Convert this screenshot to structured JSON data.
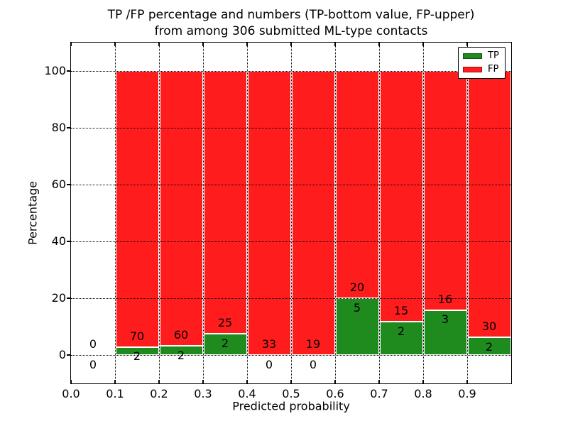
{
  "chart_data": {
    "type": "bar",
    "stacked": true,
    "title_line1": "TP /FP percentage and numbers (TP-bottom value, FP-upper)",
    "title_line2": "from among 306 submitted ML-type contacts",
    "xlabel": "Predicted probability",
    "ylabel": "Percentage",
    "xlim": [
      0.0,
      1.0
    ],
    "ylim": [
      -10,
      110
    ],
    "grid": "dotted",
    "legend_position": "upper right",
    "xticks": [
      {
        "value": 0.0,
        "label": "0.0"
      },
      {
        "value": 0.1,
        "label": "0.1"
      },
      {
        "value": 0.2,
        "label": "0.2"
      },
      {
        "value": 0.3,
        "label": "0.3"
      },
      {
        "value": 0.4,
        "label": "0.4"
      },
      {
        "value": 0.5,
        "label": "0.5"
      },
      {
        "value": 0.6,
        "label": "0.6"
      },
      {
        "value": 0.7,
        "label": "0.7"
      },
      {
        "value": 0.8,
        "label": "0.8"
      },
      {
        "value": 0.9,
        "label": "0.9"
      }
    ],
    "yticks": [
      {
        "value": 0,
        "label": "0"
      },
      {
        "value": 20,
        "label": "20"
      },
      {
        "value": 40,
        "label": "40"
      },
      {
        "value": 60,
        "label": "60"
      },
      {
        "value": 80,
        "label": "80"
      },
      {
        "value": 100,
        "label": "100"
      }
    ],
    "series": [
      {
        "name": "TP",
        "color": "#1f8b1f",
        "edge": "#145214"
      },
      {
        "name": "FP",
        "color": "#ff1c1c",
        "edge": "#a01010"
      }
    ],
    "bins": [
      {
        "x0": 0.0,
        "x1": 0.1,
        "tp": 0,
        "fp": 0
      },
      {
        "x0": 0.1,
        "x1": 0.2,
        "tp": 2,
        "fp": 70
      },
      {
        "x0": 0.2,
        "x1": 0.3,
        "tp": 2,
        "fp": 60
      },
      {
        "x0": 0.3,
        "x1": 0.4,
        "tp": 2,
        "fp": 25
      },
      {
        "x0": 0.4,
        "x1": 0.5,
        "tp": 0,
        "fp": 33
      },
      {
        "x0": 0.5,
        "x1": 0.6,
        "tp": 0,
        "fp": 19
      },
      {
        "x0": 0.6,
        "x1": 0.7,
        "tp": 5,
        "fp": 20
      },
      {
        "x0": 0.7,
        "x1": 0.8,
        "tp": 2,
        "fp": 15
      },
      {
        "x0": 0.8,
        "x1": 0.9,
        "tp": 3,
        "fp": 16
      },
      {
        "x0": 0.9,
        "x1": 1.0,
        "tp": 2,
        "fp": 30
      }
    ]
  }
}
